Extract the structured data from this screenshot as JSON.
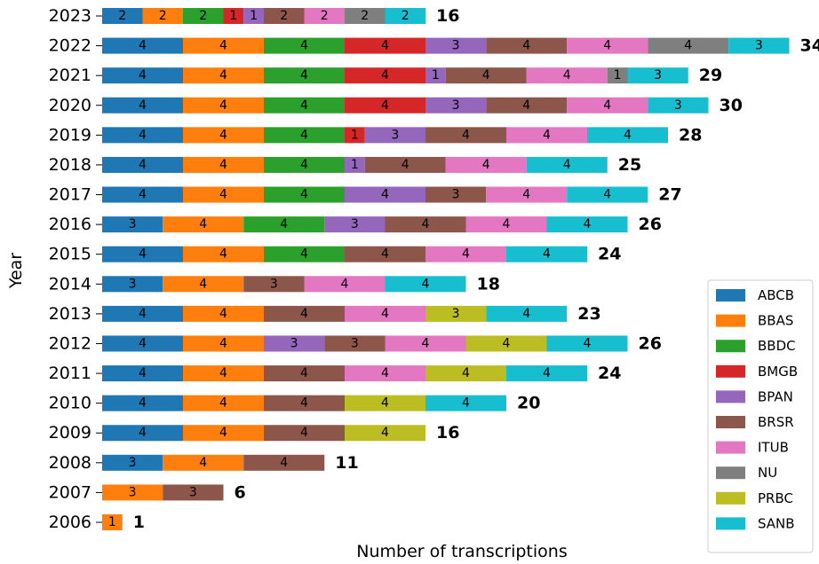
{
  "chart_data": {
    "type": "bar",
    "orientation": "horizontal",
    "stacked": true,
    "ylabel": "Year",
    "xlabel": "Number of transcriptions",
    "categories": [
      "2006",
      "2007",
      "2008",
      "2009",
      "2010",
      "2011",
      "2012",
      "2013",
      "2014",
      "2015",
      "2016",
      "2017",
      "2018",
      "2019",
      "2020",
      "2021",
      "2022",
      "2023"
    ],
    "series": [
      {
        "name": "ABCB",
        "color": "#1f77b4",
        "values": [
          null,
          null,
          3,
          4,
          4,
          4,
          4,
          4,
          3,
          4,
          3,
          4,
          4,
          4,
          4,
          4,
          4,
          2
        ]
      },
      {
        "name": "BBAS",
        "color": "#ff7f0e",
        "values": [
          1,
          3,
          4,
          4,
          4,
          4,
          4,
          4,
          4,
          4,
          4,
          4,
          4,
          4,
          4,
          4,
          4,
          2
        ]
      },
      {
        "name": "BBDC",
        "color": "#2ca02c",
        "values": [
          null,
          null,
          null,
          null,
          null,
          null,
          null,
          null,
          null,
          4,
          4,
          4,
          4,
          4,
          4,
          4,
          4,
          2
        ]
      },
      {
        "name": "BMGB",
        "color": "#d62728",
        "values": [
          null,
          null,
          null,
          null,
          null,
          null,
          null,
          null,
          null,
          null,
          null,
          null,
          null,
          1,
          4,
          4,
          4,
          1
        ]
      },
      {
        "name": "BPAN",
        "color": "#9467bd",
        "values": [
          null,
          null,
          null,
          null,
          null,
          null,
          3,
          null,
          null,
          null,
          3,
          4,
          1,
          3,
          3,
          1,
          3,
          1
        ]
      },
      {
        "name": "BRSR",
        "color": "#8c564b",
        "values": [
          null,
          3,
          4,
          4,
          4,
          4,
          3,
          4,
          3,
          4,
          4,
          3,
          4,
          4,
          4,
          4,
          4,
          2
        ]
      },
      {
        "name": "ITUB",
        "color": "#e377c2",
        "values": [
          null,
          null,
          null,
          null,
          null,
          4,
          4,
          4,
          4,
          4,
          4,
          4,
          4,
          4,
          4,
          4,
          4,
          2
        ]
      },
      {
        "name": "NU",
        "color": "#7f7f7f",
        "values": [
          null,
          null,
          null,
          null,
          null,
          null,
          null,
          null,
          null,
          null,
          null,
          null,
          null,
          null,
          null,
          1,
          4,
          2
        ]
      },
      {
        "name": "PRBC",
        "color": "#bcbd22",
        "values": [
          null,
          null,
          null,
          4,
          4,
          4,
          4,
          3,
          null,
          null,
          null,
          null,
          null,
          null,
          null,
          null,
          null,
          null
        ]
      },
      {
        "name": "SANB",
        "color": "#17becf",
        "values": [
          null,
          null,
          null,
          null,
          4,
          4,
          4,
          4,
          4,
          4,
          4,
          4,
          4,
          4,
          3,
          3,
          3,
          2
        ]
      }
    ],
    "totals": [
      1,
      6,
      11,
      16,
      20,
      24,
      26,
      23,
      18,
      24,
      26,
      27,
      25,
      28,
      30,
      29,
      34,
      16
    ],
    "legend": "lower right"
  }
}
